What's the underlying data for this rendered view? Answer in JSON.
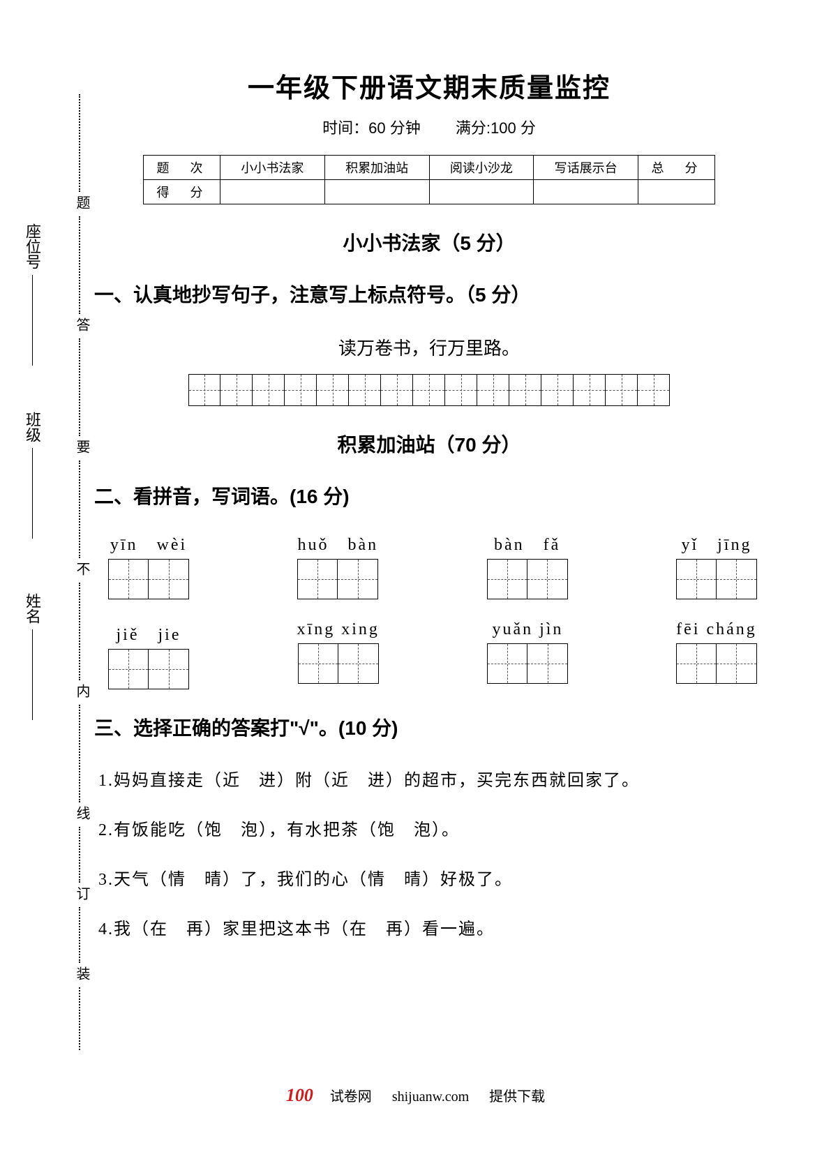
{
  "header": {
    "title": "一年级下册语文期末质量监控",
    "time_label": "时间：60 分钟",
    "full_label": "满分:100 分"
  },
  "score_table": {
    "row1_label": "题　次",
    "cols": [
      "小小书法家",
      "积累加油站",
      "阅读小沙龙",
      "写话展示台",
      "总　分"
    ],
    "row2_label": "得　分"
  },
  "section1": {
    "heading": "小小书法家（5 分）",
    "q1_heading": "一、认真地抄写句子，注意写上标点符号。（5 分）",
    "sentence": "读万卷书，行万里路。",
    "grid_cells": 15
  },
  "section2": {
    "heading": "积累加油站（70 分）",
    "q2_heading": "二、看拼音，写词语。(16 分)",
    "row1": [
      {
        "pinyin": "yīn　wèi",
        "cells": 2
      },
      {
        "pinyin": "huǒ　bàn",
        "cells": 2
      },
      {
        "pinyin": "bàn　fǎ",
        "cells": 2
      },
      {
        "pinyin": "yǐ　jīng",
        "cells": 2
      }
    ],
    "row2": [
      {
        "pinyin": "jiě　jie",
        "cells": 2
      },
      {
        "pinyin": "xīng xing",
        "cells": 2
      },
      {
        "pinyin": "yuǎn jìn",
        "cells": 2
      },
      {
        "pinyin": "fēi cháng",
        "cells": 2
      }
    ],
    "q3_heading": "三、选择正确的答案打\"√\"。(10 分)",
    "q3_items": [
      "1.妈妈直接走（近　进）附（近　进）的超市，买完东西就回家了。",
      "2.有饭能吃（饱　泡），有水把茶（饱　泡）。",
      "3.天气（情　晴）了，我们的心（情　晴）好极了。",
      "4.我（在　再）家里把这本书（在　再）看一遍。"
    ]
  },
  "binding": {
    "vertical_chars": [
      "题",
      "答",
      "要",
      "不",
      "内",
      "线",
      "订",
      "装"
    ],
    "labels": [
      "座位号",
      "班级",
      "姓名"
    ]
  },
  "footer": {
    "brand": "100",
    "site_cn": "试卷网",
    "site_url": "shijuanw.com",
    "dl": "提供下载"
  }
}
